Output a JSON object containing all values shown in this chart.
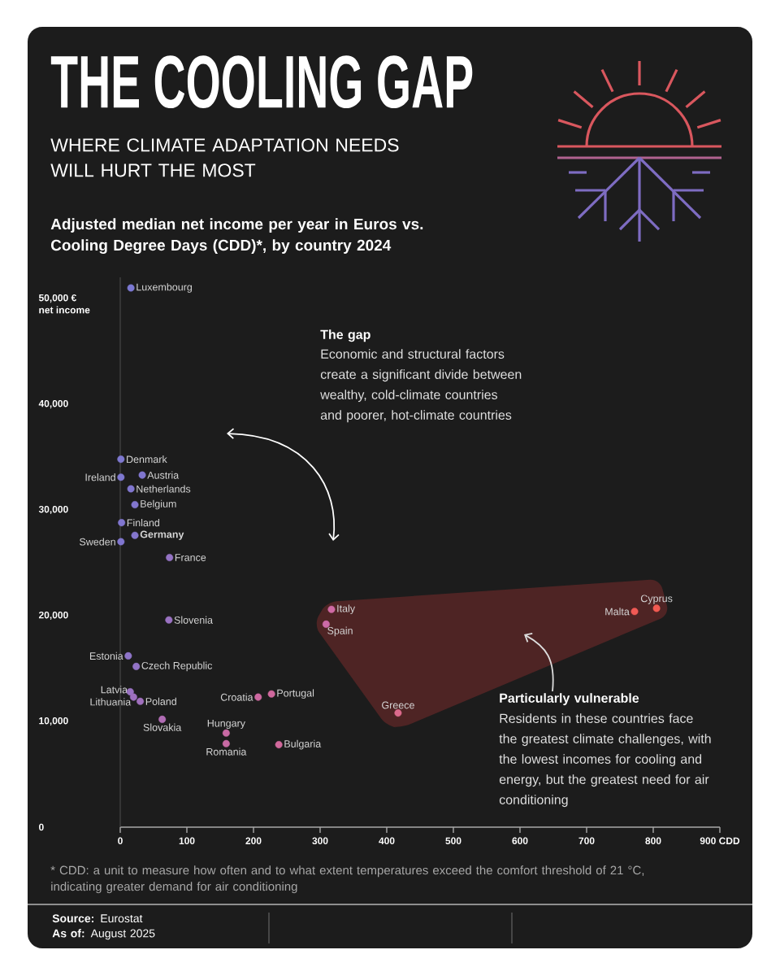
{
  "chart_data": {
    "type": "scatter",
    "title": "THE COOLING GAP",
    "subtitle": "WHERE CLIMATE ADAPTATION NEEDS WILL HURT THE MOST",
    "ylabel": "net income",
    "marker": "circle",
    "x": [
      16,
      1,
      1,
      33,
      16,
      22,
      2,
      22,
      1,
      74,
      73,
      12,
      24,
      15,
      20,
      30,
      63,
      159,
      159,
      207,
      227,
      238,
      317,
      309,
      417,
      772,
      805
    ],
    "values": [
      51000,
      34800,
      33100,
      33300,
      32000,
      30500,
      28800,
      27600,
      27000,
      25500,
      19600,
      16200,
      15200,
      12800,
      12300,
      11900,
      10200,
      8900,
      7900,
      12300,
      12600,
      7800,
      20600,
      19200,
      10800,
      20400,
      20700
    ],
    "colors": [
      "#7b78d2",
      "#7e78d0",
      "#7e78d0",
      "#8076cf",
      "#8076cf",
      "#8276ce",
      "#8076cf",
      "#8476cc",
      "#8076cf",
      "#9473c4",
      "#9a72c2",
      "#8e74c8",
      "#9273c6",
      "#9a72c2",
      "#9e70bf",
      "#a070bd",
      "#b06cb4",
      "#c86aa4",
      "#c86aa4",
      "#cc68a0",
      "#cf689d",
      "#d0689b",
      "#cf6aa4",
      "#cc6aa6",
      "#dc6a8c",
      "#f05a55",
      "#f25a52"
    ],
    "xlim": [
      0,
      900
    ],
    "ylim": [
      0,
      52000
    ],
    "xticks": [
      0,
      100,
      200,
      300,
      400,
      500,
      600,
      700,
      800,
      {
        "value": 900,
        "label": "900 CDD"
      }
    ],
    "yticks": [
      0,
      {
        "value": 10000,
        "label": "10,000"
      },
      {
        "value": 20000,
        "label": "20,000"
      },
      {
        "value": 30000,
        "label": "30,000"
      },
      {
        "value": 40000,
        "label": "40,000"
      },
      {
        "value": 50000,
        "label": "50,000 €"
      }
    ],
    "annotations": [
      {
        "text": "Luxembourg",
        "x": 16,
        "y": 51000
      },
      {
        "text": "Denmark",
        "x": 1,
        "y": 34800
      },
      {
        "text": "Ireland",
        "x": 1,
        "y": 33100
      },
      {
        "text": "Austria",
        "x": 33,
        "y": 33300
      },
      {
        "text": "Netherlands",
        "x": 16,
        "y": 32000
      },
      {
        "text": "Belgium",
        "x": 22,
        "y": 30500
      },
      {
        "text": "Finland",
        "x": 2,
        "y": 28800
      },
      {
        "text": "**Germany**",
        "x": 22,
        "y": 27600
      },
      {
        "text": "Sweden",
        "x": 1,
        "y": 27000
      },
      {
        "text": "France",
        "x": 74,
        "y": 25500
      },
      {
        "text": "Slovenia",
        "x": 73,
        "y": 19600
      },
      {
        "text": "Estonia",
        "x": 12,
        "y": 16200
      },
      {
        "text": "Czech Republic",
        "x": 24,
        "y": 15200
      },
      {
        "text": "Latvia",
        "x": 15,
        "y": 12800
      },
      {
        "text": "Lithuania",
        "x": 20,
        "y": 12300
      },
      {
        "text": "Poland",
        "x": 30,
        "y": 11900
      },
      {
        "text": "Slovakia",
        "x": 63,
        "y": 10200
      },
      {
        "text": "Hungary",
        "x": 159,
        "y": 8900
      },
      {
        "text": "Romania",
        "x": 159,
        "y": 7900
      },
      {
        "text": "Croatia",
        "x": 207,
        "y": 12300
      },
      {
        "text": "Portugal",
        "x": 227,
        "y": 12600
      },
      {
        "text": "Bulgaria",
        "x": 238,
        "y": 7800
      },
      {
        "text": "Italy",
        "x": 317,
        "y": 20600
      },
      {
        "text": "Spain",
        "x": 309,
        "y": 19200
      },
      {
        "text": "Greece",
        "x": 417,
        "y": 10800
      },
      {
        "text": "Malta",
        "x": 772,
        "y": 20400
      },
      {
        "text": "Cyprus",
        "x": 805,
        "y": 20700
      },
      "The gap",
      "Economic and structural factors create a significant divide between wealthy, cold-climate countries and poorer, hot-climate countries",
      "Particularly vulnerable",
      "Residents in these countries face the greatest climate challenges, with the lowest incomes for cooling and energy, but the greatest need for air conditioning",
      "Adjusted median net income per year in Euros vs. Cooling Degree Days (CDD)*, by country 2024",
      "* CDD: a unit to measure how often and to what extent temperatures exceed the comfort threshold of 21 °C, indicating greater demand for air conditioning",
      "**Source:** Eurostat",
      "**As of:** August 2025"
    ]
  }
}
